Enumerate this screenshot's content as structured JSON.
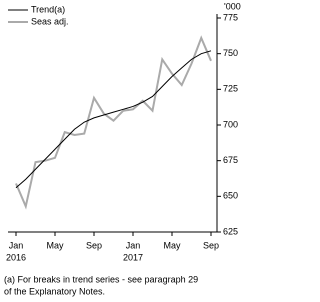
{
  "chart_data": {
    "type": "line",
    "unit_label": "'000",
    "categories": [
      "Jan",
      null,
      null,
      null,
      "May",
      null,
      null,
      null,
      "Sep",
      null,
      null,
      null,
      "Jan",
      null,
      null,
      null,
      "May",
      null,
      null,
      null,
      "Sep"
    ],
    "category_years": [
      "2016",
      null,
      null,
      null,
      null,
      null,
      null,
      null,
      null,
      null,
      null,
      null,
      "2017",
      null,
      null,
      null,
      null,
      null,
      null,
      null,
      null
    ],
    "series": [
      {
        "name": "Trend(a)",
        "color": "#000000",
        "values": [
          656,
          662,
          669,
          676,
          683,
          690,
          697,
          702,
          705,
          707,
          709,
          711,
          713,
          716,
          720,
          727,
          734,
          740,
          746,
          750,
          752
        ]
      },
      {
        "name": "Seas adj.",
        "color": "#aaaaaa",
        "values": [
          659,
          643,
          674,
          675,
          677,
          695,
          693,
          694,
          719,
          708,
          703,
          710,
          711,
          717,
          710,
          746,
          736,
          728,
          743,
          761,
          745
        ]
      }
    ],
    "ylim": [
      625,
      775
    ],
    "yticks": [
      625,
      650,
      675,
      700,
      725,
      750,
      775
    ],
    "legend": "top-left",
    "footnote": [
      "(a) For breaks in trend series - see paragraph 29",
      "of the Explanatory Notes."
    ]
  }
}
